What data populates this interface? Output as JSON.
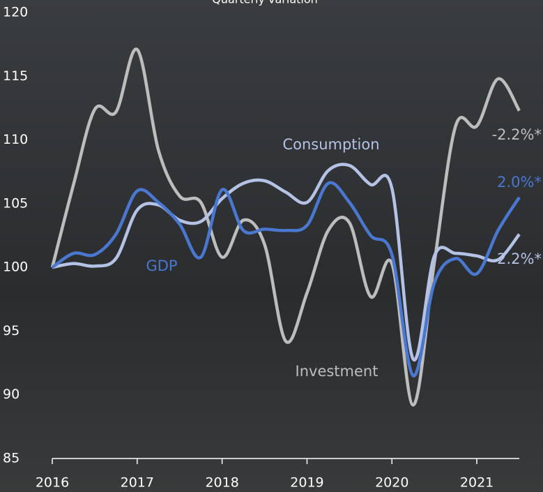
{
  "chart_data": {
    "type": "line",
    "title": "Quarterly variation",
    "x": [
      2016,
      2016.25,
      2016.5,
      2016.75,
      2017,
      2017.25,
      2017.5,
      2017.75,
      2018,
      2018.25,
      2018.5,
      2018.75,
      2019,
      2019.25,
      2019.5,
      2019.75,
      2020,
      2020.25,
      2020.5,
      2020.75,
      2021,
      2021.25,
      2021.5
    ],
    "series": [
      {
        "name": "Investment",
        "color": "#bdbdbd",
        "values": [
          100,
          106.5,
          112.4,
          112.2,
          117.1,
          109.2,
          105.6,
          105.1,
          100.8,
          103.7,
          101.8,
          94.2,
          98.0,
          102.9,
          103.5,
          97.7,
          100.3,
          89.2,
          100.4,
          111.1,
          111.1,
          114.8,
          112.3
        ]
      },
      {
        "name": "Consumption",
        "color": "#b4c2e6",
        "values": [
          100,
          100.3,
          100.1,
          100.7,
          104.5,
          104.9,
          103.7,
          103.6,
          105.4,
          106.6,
          106.8,
          105.9,
          105.1,
          107.6,
          108.0,
          106.5,
          106.2,
          92.8,
          100.9,
          101.1,
          100.9,
          100.6,
          102.6
        ]
      },
      {
        "name": "GDP",
        "color": "#4a78d0",
        "values": [
          100,
          101.1,
          101.0,
          102.6,
          106.0,
          105.1,
          103.4,
          100.8,
          106.1,
          102.9,
          103.0,
          102.9,
          103.3,
          106.6,
          105.1,
          102.5,
          101.0,
          91.5,
          98.8,
          100.7,
          99.5,
          102.9,
          105.5
        ]
      }
    ],
    "annotations": [
      "-2.2%*",
      "2.0%*",
      "2.2%*"
    ],
    "xlim": [
      2016,
      2021.5
    ],
    "xticks": [
      2016,
      2017,
      2018,
      2019,
      2020,
      2021
    ],
    "ylim": [
      85,
      120
    ],
    "yticks": [
      85,
      90,
      95,
      100,
      105,
      110,
      115,
      120
    ]
  }
}
